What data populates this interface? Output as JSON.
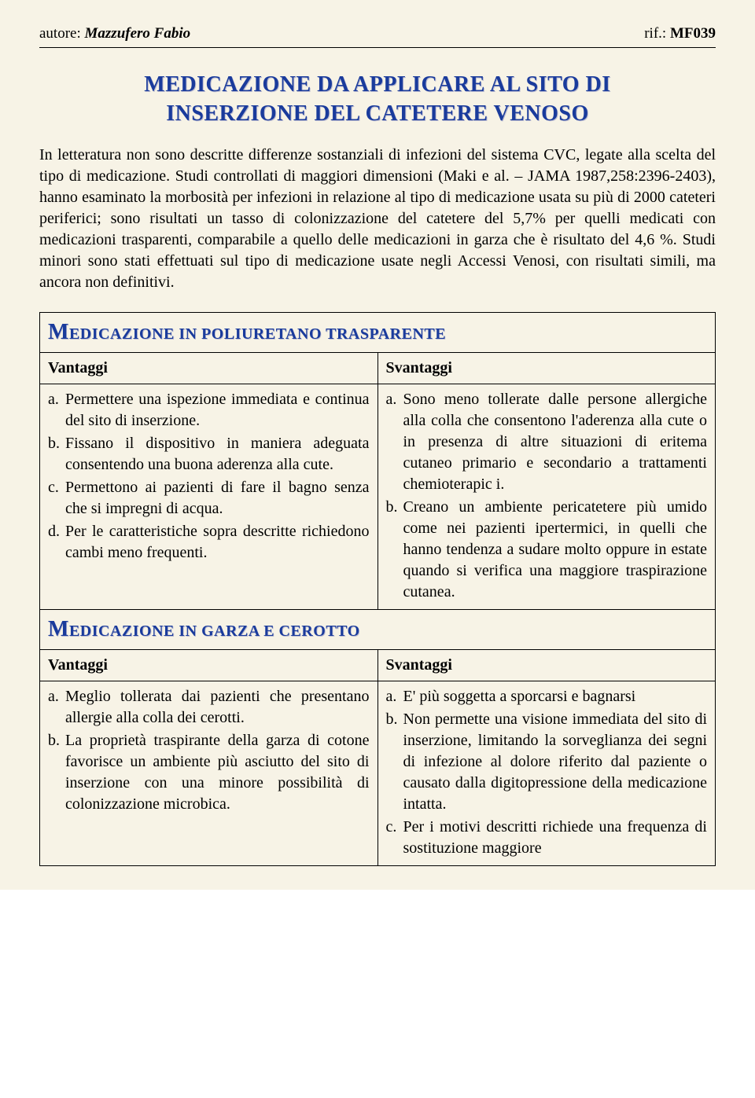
{
  "header": {
    "author_label": "autore: ",
    "author_name": "Mazzufero Fabio",
    "rif_label": "rif.: ",
    "rif_code": "MF039"
  },
  "title": {
    "line1": "MEDICAZIONE DA APPLICARE AL SITO DI",
    "line2": "INSERZIONE DEL CATETERE VENOSO"
  },
  "body": "In letteratura non sono descritte differenze sostanziali di infezioni del sistema CVC, legate alla scelta del tipo di medicazione. Studi controllati di maggiori dimensioni (Maki e al. – JAMA 1987,258:2396-2403), hanno esaminato la morbosità per infezioni in relazione al tipo di medicazione usata su più di 2000 cateteri periferici; sono risultati un tasso di colonizzazione del catetere del 5,7% per quelli medicati con medicazioni trasparenti, comparabile a quello delle medicazioni in garza che è risultato del 4,6 %. Studi minori sono stati effettuati sul tipo di medicazione usate negli Accessi Venosi, con risultati simili, ma ancora non definitivi.",
  "table1": {
    "title": "MEDICAZIONE IN POLIURETANO TRASPARENTE",
    "title_lead": "M",
    "col1": "Vantaggi",
    "col2": "Svantaggi",
    "vantaggi": [
      {
        "m": "a.",
        "t": "Permettere una ispezione immediata e continua del sito di inserzione."
      },
      {
        "m": "b.",
        "t": "Fissano il dispositivo in maniera adeguata consentendo una buona aderenza alla cute."
      },
      {
        "m": "c.",
        "t": "Permettono ai pazienti di fare il bagno senza che si impregni di acqua."
      },
      {
        "m": "d.",
        "t": "Per le caratteristiche sopra descritte richiedono cambi meno frequenti."
      }
    ],
    "svantaggi": [
      {
        "m": "a.",
        "t": "Sono meno tollerate dalle persone allergiche alla colla che consentono l'aderenza alla cute o in presenza di altre situazioni di eritema cutaneo primario e secondario a trattamenti chemioterapic i."
      },
      {
        "m": "b.",
        "t": "Creano un ambiente pericatetere più umido come nei pazienti ipertermici, in quelli che hanno tendenza a sudare molto oppure in estate quando si verifica una maggiore traspirazione cutanea."
      }
    ]
  },
  "table2": {
    "title": "MEDICAZIONE IN GARZA E CEROTTO",
    "title_lead": "M",
    "col1": "Vantaggi",
    "col2": "Svantaggi",
    "vantaggi": [
      {
        "m": "a.",
        "t": "Meglio tollerata dai pazienti che presentano allergie alla colla dei cerotti."
      },
      {
        "m": "b.",
        "t": "La proprietà traspirante della garza di cotone favorisce un ambiente più asciutto del sito di inserzione con una minore possibilità di colonizzazione microbica."
      }
    ],
    "svantaggi": [
      {
        "m": "a.",
        "t": "E' più soggetta a sporcarsi e bagnarsi"
      },
      {
        "m": "b.",
        "t": "Non permette una visione immediata del sito di inserzione, limitando la sorveglianza dei segni di infezione al dolore riferito dal paziente o causato dalla digitopressione della medicazione intatta."
      },
      {
        "m": "c.",
        "t": "Per i motivi descritti richiede una frequenza di sostituzione maggiore"
      }
    ]
  },
  "colors": {
    "title_color": "#1a3b9c",
    "background": "#f7f3e6",
    "border": "#000000"
  }
}
